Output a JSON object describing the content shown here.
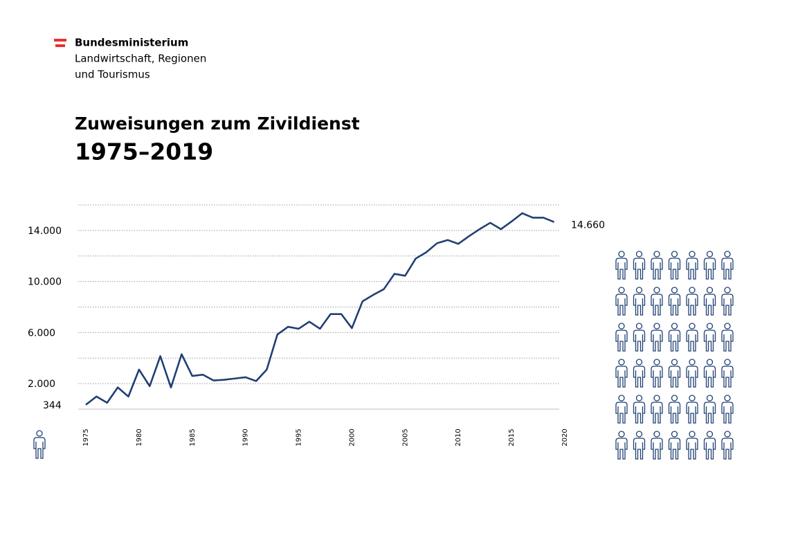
{
  "header": {
    "lines": [
      "Bundesministerium",
      "Landwirtschaft, Regionen",
      "und Tourismus"
    ]
  },
  "chart_data": {
    "type": "line",
    "title": "Zuweisungen zum Zivildienst",
    "subtitle": "1975–2019",
    "x": [
      1975,
      1976,
      1977,
      1978,
      1979,
      1980,
      1981,
      1982,
      1983,
      1984,
      1985,
      1986,
      1987,
      1988,
      1989,
      1990,
      1991,
      1992,
      1993,
      1994,
      1995,
      1996,
      1997,
      1998,
      1999,
      2000,
      2001,
      2002,
      2003,
      2004,
      2005,
      2006,
      2007,
      2008,
      2009,
      2010,
      2011,
      2012,
      2013,
      2014,
      2015,
      2016,
      2017,
      2018,
      2019
    ],
    "series": [
      {
        "name": "Zuweisungen",
        "color": "#1f3f74",
        "values": [
          344,
          990,
          500,
          1700,
          990,
          3100,
          1800,
          4150,
          1700,
          4300,
          2600,
          2700,
          2250,
          2300,
          2400,
          2500,
          2200,
          3100,
          5850,
          6450,
          6300,
          6850,
          6300,
          7450,
          7450,
          6350,
          8450,
          8950,
          9400,
          10600,
          10450,
          11800,
          12300,
          13000,
          13250,
          12950,
          13550,
          14100,
          14600,
          14100,
          14700,
          15350,
          15000,
          15000,
          14660
        ],
        "value_labels": [
          "344",
          null,
          null,
          null,
          null,
          null,
          null,
          null,
          null,
          null,
          null,
          null,
          null,
          null,
          null,
          null,
          null,
          null,
          null,
          null,
          null,
          null,
          null,
          null,
          null,
          null,
          null,
          null,
          null,
          null,
          null,
          null,
          null,
          null,
          null,
          null,
          null,
          null,
          null,
          null,
          null,
          null,
          null,
          null,
          "14.660"
        ]
      }
    ],
    "xlim": [
      1975,
      2020
    ],
    "xticks": [
      1975,
      1980,
      1985,
      1990,
      1995,
      2000,
      2005,
      2010,
      2015,
      2020
    ],
    "ylim": [
      0,
      16000
    ],
    "yticks": [
      {
        "value": 2000,
        "label": "2.000"
      },
      {
        "value": 6000,
        "label": "6.000"
      },
      {
        "value": 10000,
        "label": "10.000"
      },
      {
        "value": 14000,
        "label": "14.000"
      }
    ],
    "minor_yticks": [
      0,
      4000,
      8000,
      12000,
      16000
    ],
    "grid": true
  }
}
